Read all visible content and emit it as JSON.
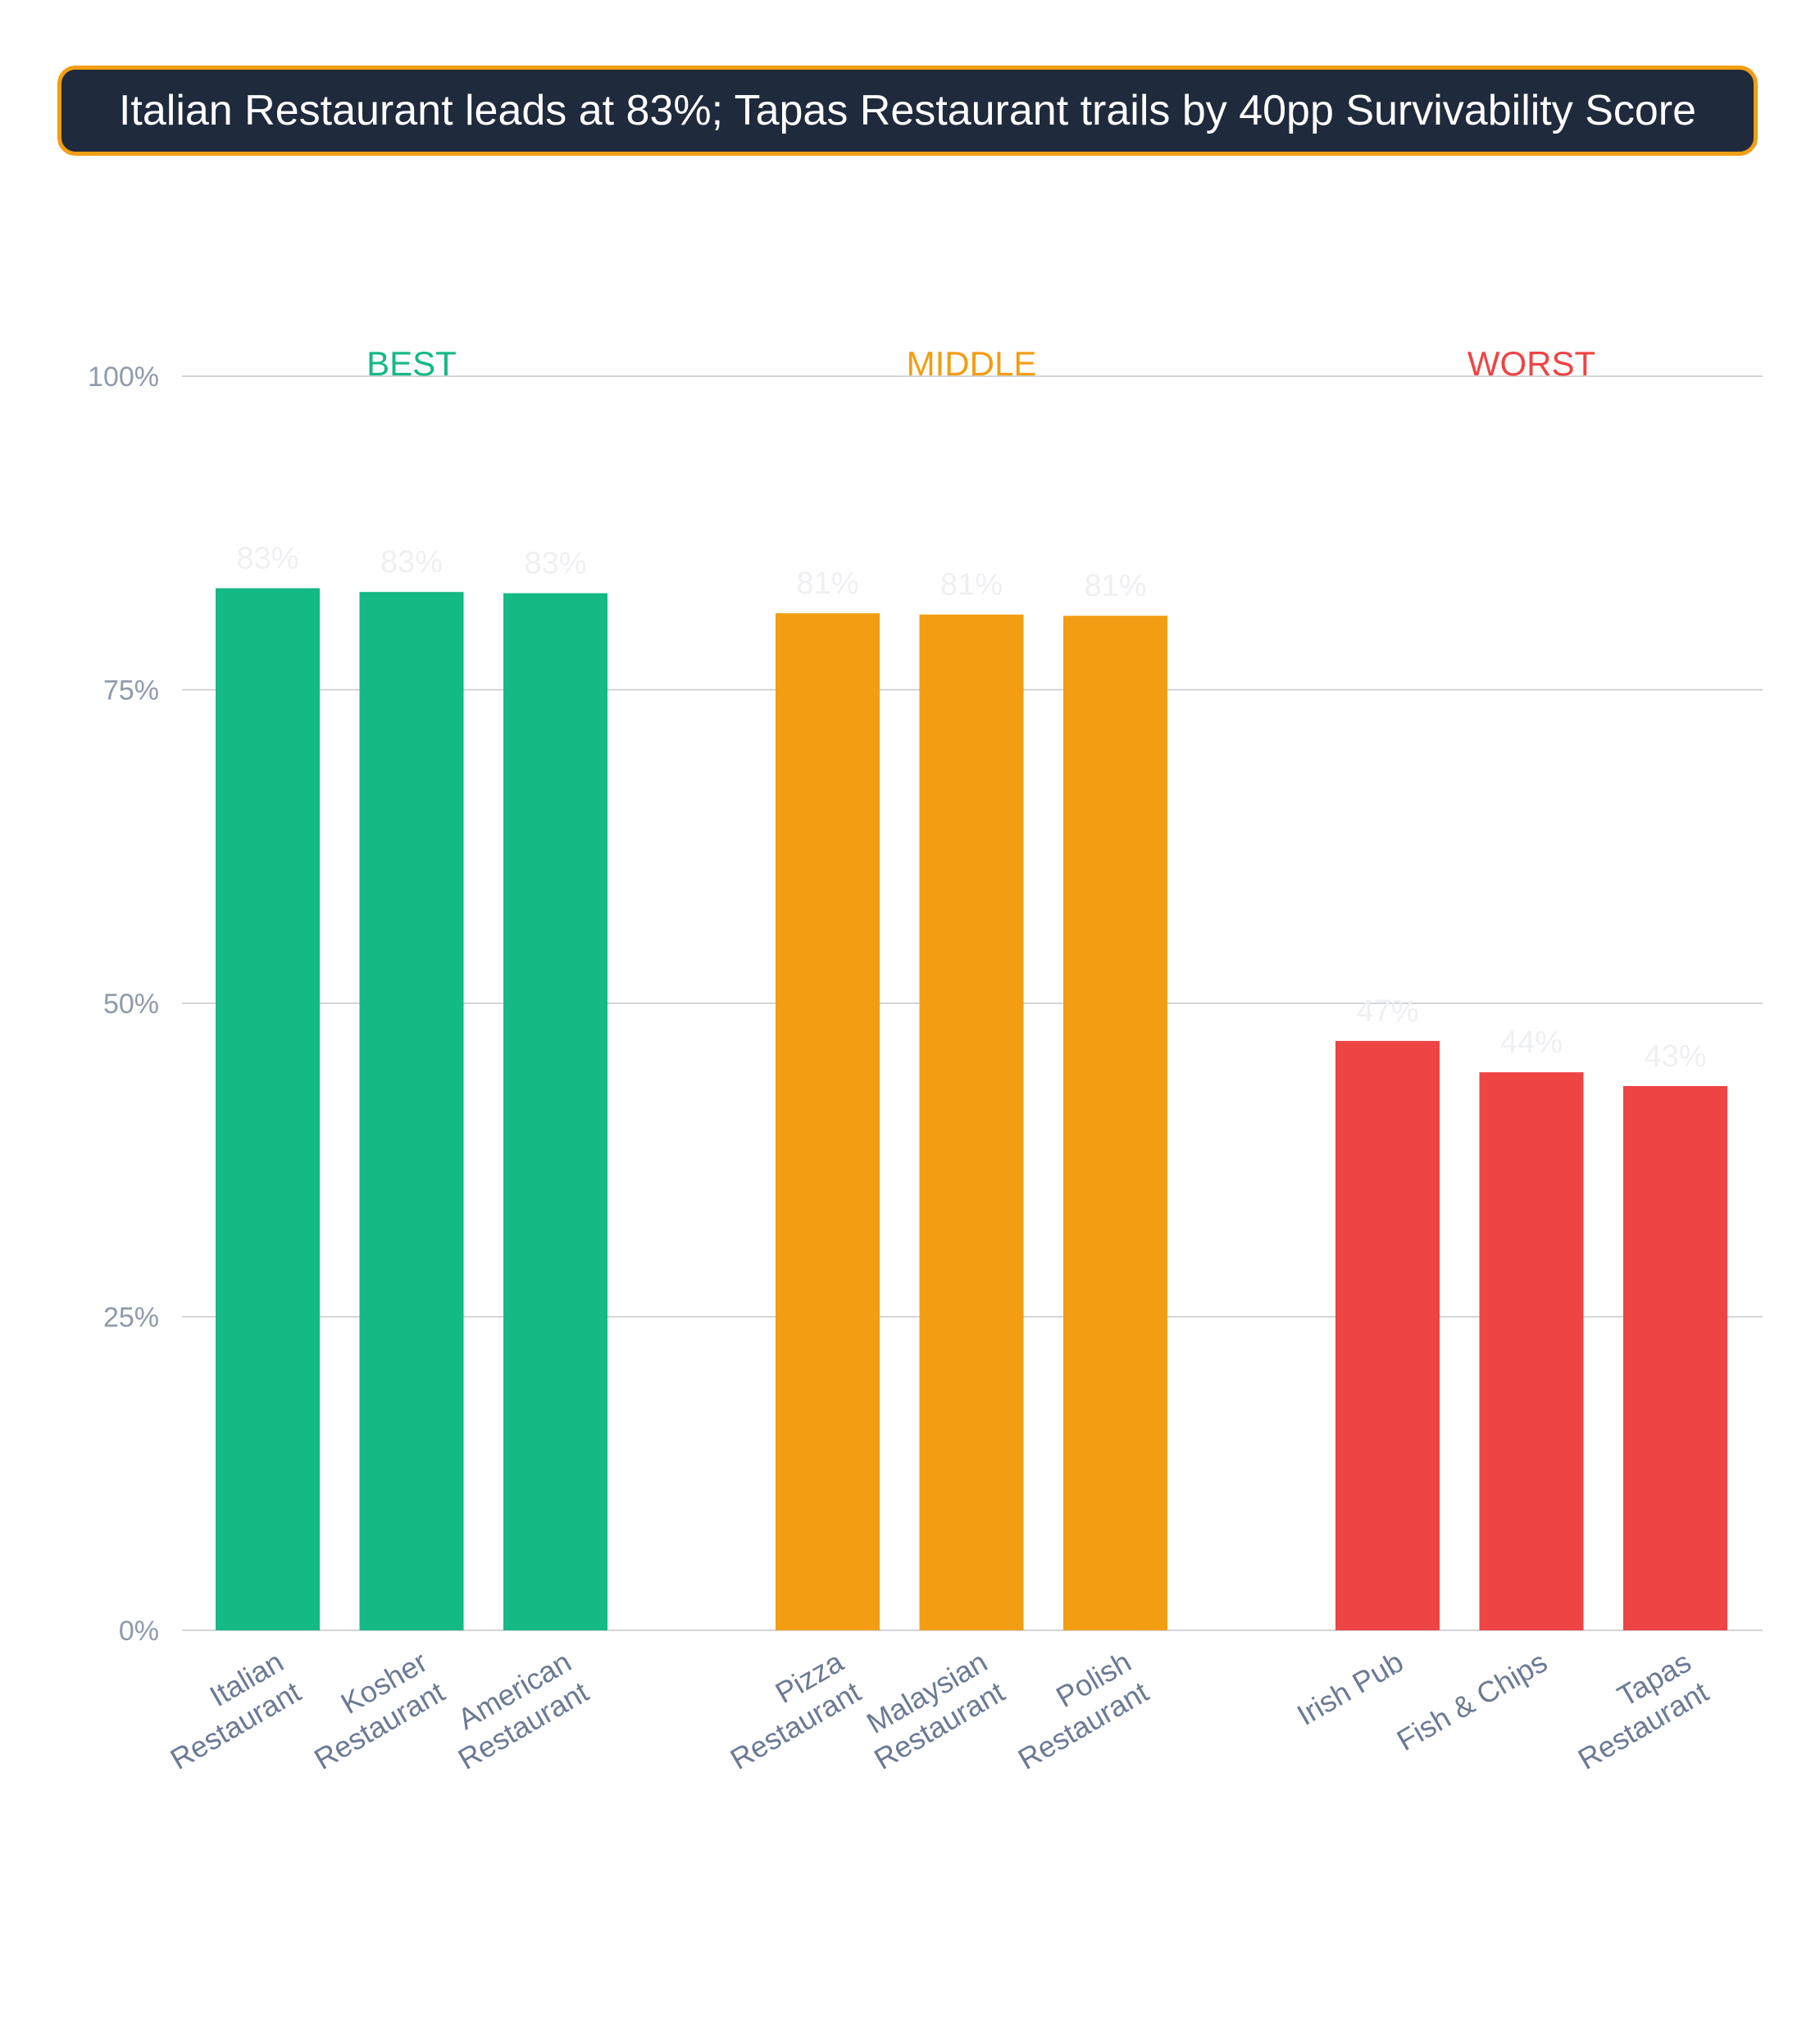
{
  "title": "Italian Restaurant leads at 83%; Tapas Restaurant trails by 40pp Survivability Score",
  "colors": {
    "best": "#14b985",
    "middle": "#f29d12",
    "worst": "#ee4444",
    "title_bg": "#1f2a3c",
    "title_border": "#f29d12",
    "axis_text": "#8f9aab",
    "category_text": "#6b7a93",
    "grid": "#c4c7cc",
    "value_label": "#eef0f3"
  },
  "chart_data": {
    "type": "bar",
    "ylim": [
      0,
      100
    ],
    "yticks": [
      "0%",
      "25%",
      "50%",
      "75%",
      "100%"
    ],
    "grid": true,
    "groups": [
      {
        "name": "BEST",
        "color_key": "best",
        "categories": [
          [
            "Italian",
            "Restaurant"
          ],
          [
            "Kosher",
            "Restaurant"
          ],
          [
            "American",
            "Restaurant"
          ]
        ],
        "values": [
          83.1,
          82.8,
          82.7
        ],
        "labels": [
          "83%",
          "83%",
          "83%"
        ]
      },
      {
        "name": "MIDDLE",
        "color_key": "middle",
        "categories": [
          [
            "Pizza",
            "Restaurant"
          ],
          [
            "Malaysian",
            "Restaurant"
          ],
          [
            "Polish",
            "Restaurant"
          ]
        ],
        "values": [
          81.1,
          81.0,
          80.9
        ],
        "labels": [
          "81%",
          "81%",
          "81%"
        ]
      },
      {
        "name": "WORST",
        "color_key": "worst",
        "categories": [
          [
            "Irish Pub"
          ],
          [
            "Fish & Chips"
          ],
          [
            "Tapas",
            "Restaurant"
          ]
        ],
        "values": [
          47.0,
          44.5,
          43.4
        ],
        "labels": [
          "47%",
          "44%",
          "43%"
        ]
      }
    ]
  }
}
